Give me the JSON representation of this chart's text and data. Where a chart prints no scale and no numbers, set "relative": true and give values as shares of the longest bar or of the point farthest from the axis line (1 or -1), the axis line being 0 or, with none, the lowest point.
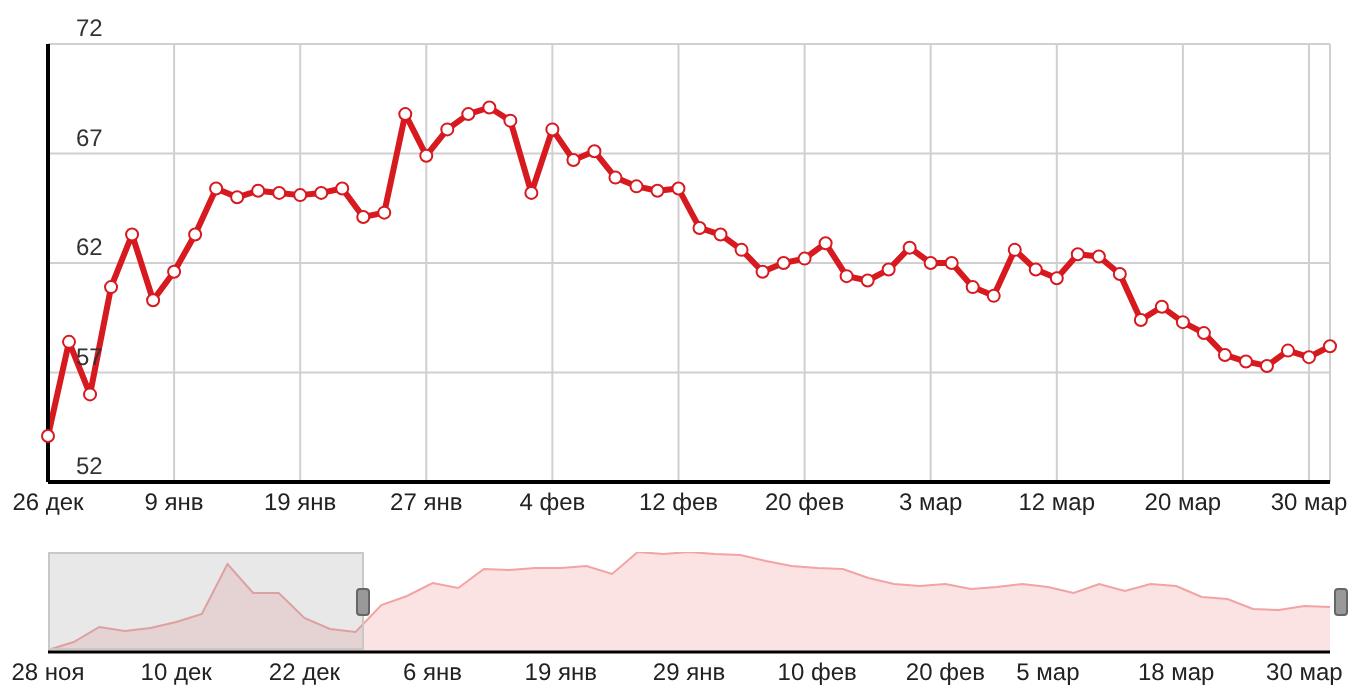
{
  "chart_data": [
    {
      "type": "line",
      "categories": [
        "26 дек",
        null,
        null,
        null,
        null,
        null,
        "9 янв",
        null,
        null,
        null,
        null,
        null,
        "19 янв",
        null,
        null,
        null,
        null,
        null,
        "27 янв",
        null,
        null,
        null,
        null,
        null,
        "4 фев",
        null,
        null,
        null,
        null,
        null,
        "12 фев",
        null,
        null,
        null,
        null,
        null,
        "20 фев",
        null,
        null,
        null,
        null,
        null,
        "3 мар",
        null,
        null,
        null,
        null,
        null,
        "12 мар",
        null,
        null,
        null,
        null,
        null,
        "20 мар",
        null,
        null,
        null,
        null,
        null,
        "30 мар",
        null
      ],
      "values": [
        54.1,
        58.4,
        56.0,
        60.9,
        63.3,
        60.3,
        61.6,
        63.3,
        65.4,
        65.0,
        65.3,
        65.2,
        65.1,
        65.2,
        65.4,
        64.1,
        64.3,
        68.8,
        66.9,
        68.1,
        68.8,
        69.1,
        68.5,
        65.2,
        68.1,
        66.7,
        67.1,
        65.9,
        65.5,
        65.3,
        65.4,
        63.6,
        63.3,
        62.6,
        61.6,
        62.0,
        62.2,
        62.9,
        61.4,
        61.2,
        61.7,
        62.7,
        62.0,
        62.0,
        60.9,
        60.5,
        62.6,
        61.7,
        61.3,
        62.4,
        62.3,
        61.5,
        59.4,
        60.0,
        59.3,
        58.8,
        57.8,
        57.5,
        57.3,
        58.0,
        57.7,
        58.2
      ],
      "color": "#d71920",
      "ylim": [
        52,
        72
      ],
      "yticks": [
        52,
        57,
        62,
        67,
        72
      ],
      "grid": true,
      "marker": "circle",
      "line_style": "solid"
    },
    {
      "type": "area",
      "relative": true,
      "categories": [
        "28 ноя",
        null,
        null,
        null,
        null,
        "10 дек",
        null,
        null,
        null,
        null,
        "22 дек",
        null,
        null,
        null,
        null,
        "6 янв",
        null,
        null,
        null,
        null,
        "19 янв",
        null,
        null,
        null,
        null,
        "29 янв",
        null,
        null,
        null,
        null,
        "10 фев",
        null,
        null,
        null,
        null,
        "20 фев",
        null,
        null,
        null,
        "5 мар",
        null,
        null,
        null,
        null,
        "18 мар",
        null,
        null,
        null,
        null,
        "30 мар",
        null
      ],
      "values": [
        0.02,
        0.1,
        0.25,
        0.21,
        0.24,
        0.3,
        0.38,
        0.88,
        0.59,
        0.59,
        0.34,
        0.23,
        0.2,
        0.47,
        0.56,
        0.69,
        0.64,
        0.83,
        0.82,
        0.84,
        0.84,
        0.86,
        0.78,
        1,
        0.98,
        1,
        0.98,
        0.97,
        0.91,
        0.86,
        0.84,
        0.83,
        0.74,
        0.68,
        0.66,
        0.68,
        0.63,
        0.65,
        0.68,
        0.65,
        0.59,
        0.68,
        0.61,
        0.68,
        0.66,
        0.55,
        0.53,
        0.43,
        0.42,
        0.46,
        0.45
      ],
      "color": "#f2a3a3"
    }
  ]
}
